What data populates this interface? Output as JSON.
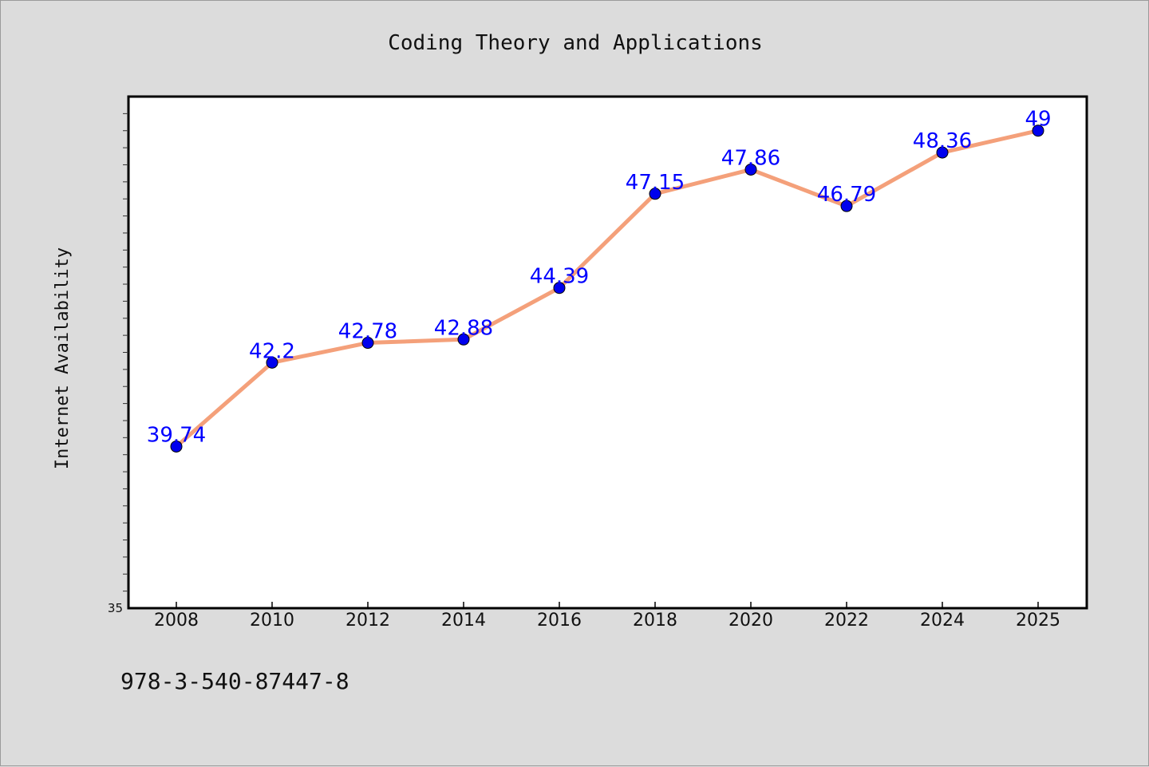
{
  "chart_data": {
    "type": "line",
    "title": "Coding Theory and Applications",
    "xlabel": "",
    "ylabel": "Internet Availability",
    "categories": [
      "2008",
      "2010",
      "2012",
      "2014",
      "2016",
      "2018",
      "2020",
      "2022",
      "2024",
      "2025"
    ],
    "series": [
      {
        "values": [
          39.74,
          42.2,
          42.78,
          42.88,
          44.39,
          47.15,
          47.86,
          46.79,
          48.36,
          49
        ],
        "data_labels": [
          "39.74",
          "42.2",
          "42.78",
          "42.88",
          "44.39",
          "47.15",
          "47.86",
          "46.79",
          "48.36",
          "49"
        ]
      }
    ],
    "ylim": [
      35,
      50
    ],
    "ytick_label_shown": "35",
    "grid": false,
    "legend": "none",
    "colors": {
      "line": "#f4a07a",
      "marker": "#0000ee",
      "label": "#0000ff",
      "plot_background": "#ffffff",
      "page_background": "#dcdcdc"
    }
  },
  "footer": {
    "isbn": "978-3-540-87447-8"
  }
}
